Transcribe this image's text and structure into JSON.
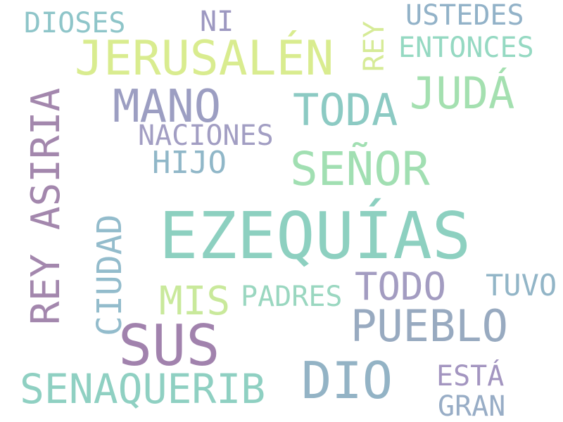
{
  "cloud": {
    "words": [
      {
        "id": "ezequias",
        "text": "EZEQUÍAS",
        "color": "#8dd0c0"
      },
      {
        "id": "jerusalen",
        "text": "JERUSALÉN",
        "color": "#d9ec8f"
      },
      {
        "id": "rey-asiria",
        "text": "REY ASIRIA",
        "color": "#a387ad"
      },
      {
        "id": "sus",
        "text": "SUS",
        "color": "#a182ad"
      },
      {
        "id": "pueblo",
        "text": "PUEBLO",
        "color": "#98aac0"
      },
      {
        "id": "dio",
        "text": "DIO",
        "color": "#93b3c5"
      },
      {
        "id": "senaquerib",
        "text": "SENAQUERIB",
        "color": "#8fd0c2"
      },
      {
        "id": "senor",
        "text": "SEÑOR",
        "color": "#a1dfb2"
      },
      {
        "id": "toda",
        "text": "TODA",
        "color": "#8ccac3"
      },
      {
        "id": "mano",
        "text": "MANO",
        "color": "#9c9ec2"
      },
      {
        "id": "juda",
        "text": "JUDÁ",
        "color": "#a4e0b0"
      },
      {
        "id": "todo",
        "text": "TODO",
        "color": "#a39cc1"
      },
      {
        "id": "mis",
        "text": "MIS",
        "color": "#c9e99b"
      },
      {
        "id": "ciudad",
        "text": "CIUDAD",
        "color": "#93bccc"
      },
      {
        "id": "dioses",
        "text": "DIOSES",
        "color": "#8ec5c9"
      },
      {
        "id": "ni",
        "text": "NI",
        "color": "#9d98c1"
      },
      {
        "id": "ustedes",
        "text": "USTEDES",
        "color": "#92b2c8"
      },
      {
        "id": "entonces",
        "text": "ENTONCES",
        "color": "#95d9c2"
      },
      {
        "id": "rey",
        "text": "REY",
        "color": "#d6eb97"
      },
      {
        "id": "naciones",
        "text": "NACIONES",
        "color": "#a29ec3"
      },
      {
        "id": "hijo",
        "text": "HIJO",
        "color": "#90b7c8"
      },
      {
        "id": "padres",
        "text": "PADRES",
        "color": "#9ad7c0"
      },
      {
        "id": "tuvo",
        "text": "TUVO",
        "color": "#92b5c7"
      },
      {
        "id": "esta",
        "text": "ESTÁ",
        "color": "#a395c0"
      },
      {
        "id": "gran",
        "text": "GRAN",
        "color": "#98adc6"
      }
    ]
  }
}
